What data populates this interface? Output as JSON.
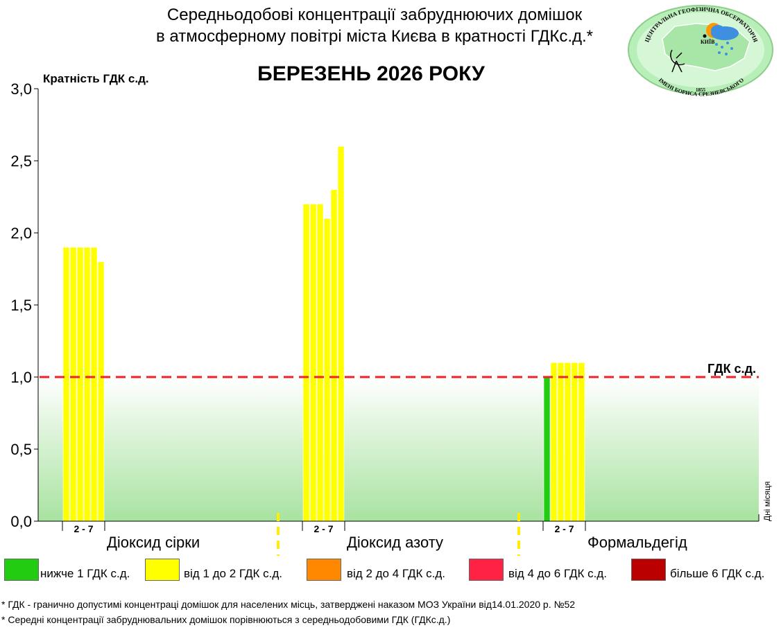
{
  "title_line1": "Середньодобові концентрації забруднюючих домішок",
  "title_line2": "в атмосферному повітрі міста Києва в кратності ГДКс.д.*",
  "month_title": "БЕРЕЗЕНЬ 2026 РОКУ",
  "logo": {
    "text_top": "ЦЕНТРАЛЬНА ГЕОФІЗИЧНА ОБСЕРВАТОРІЯ",
    "text_bottom": "ІМЕНІ БОРИСА СРЕЗНЕВСЬКОГО",
    "year": "1855",
    "city": "КИЇВ"
  },
  "colors": {
    "below_1": "#22cc11",
    "from_1_to_2": "#ffff00",
    "from_2_to_4": "#ff8800",
    "from_4_to_6": "#ff2244",
    "above_6": "#bb0000",
    "limit_line": "#ee2222"
  },
  "chart_data": {
    "type": "bar",
    "ylabel": "Кратність ГДК с.д.",
    "xlabel": "Дні місяця",
    "ylim": [
      0,
      3.0
    ],
    "yticks": [
      "0,0",
      "0,5",
      "1,0",
      "1,5",
      "2,0",
      "2,5",
      "3,0"
    ],
    "reference_line": {
      "value": 1.0,
      "label": "ГДК с.д."
    },
    "groups": [
      {
        "name": "Діоксид сірки",
        "days_label": "2 - 7",
        "values": [
          1.9,
          1.9,
          1.9,
          1.9,
          1.9,
          1.8
        ]
      },
      {
        "name": "Діоксид азоту",
        "days_label": "2 - 7",
        "values": [
          2.2,
          2.2,
          2.2,
          2.1,
          2.3,
          2.6
        ]
      },
      {
        "name": "Формальдегід",
        "days_label": "2 - 7",
        "values": [
          1.0,
          1.1,
          1.1,
          1.1,
          1.1,
          1.1
        ]
      }
    ]
  },
  "legend": [
    {
      "label": "нижче 1 ГДК с.д.",
      "color": "#22cc11"
    },
    {
      "label": "від 1 до 2 ГДК с.д.",
      "color": "#ffff00"
    },
    {
      "label": "від 2 до 4 ГДК с.д.",
      "color": "#ff8800"
    },
    {
      "label": "від 4 до 6 ГДК с.д.",
      "color": "#ff2244"
    },
    {
      "label": "більше 6 ГДК с.д.",
      "color": "#bb0000"
    }
  ],
  "footnotes": [
    "* ГДК - гранично допустимі концентраці домішок для населених місць, затверджені наказом МОЗ України від14.01.2020 р. №52",
    "* Середні концентрації забруднювальних домішок порівнюються з середньодобовими  ГДК (ГДКс.д.)"
  ]
}
